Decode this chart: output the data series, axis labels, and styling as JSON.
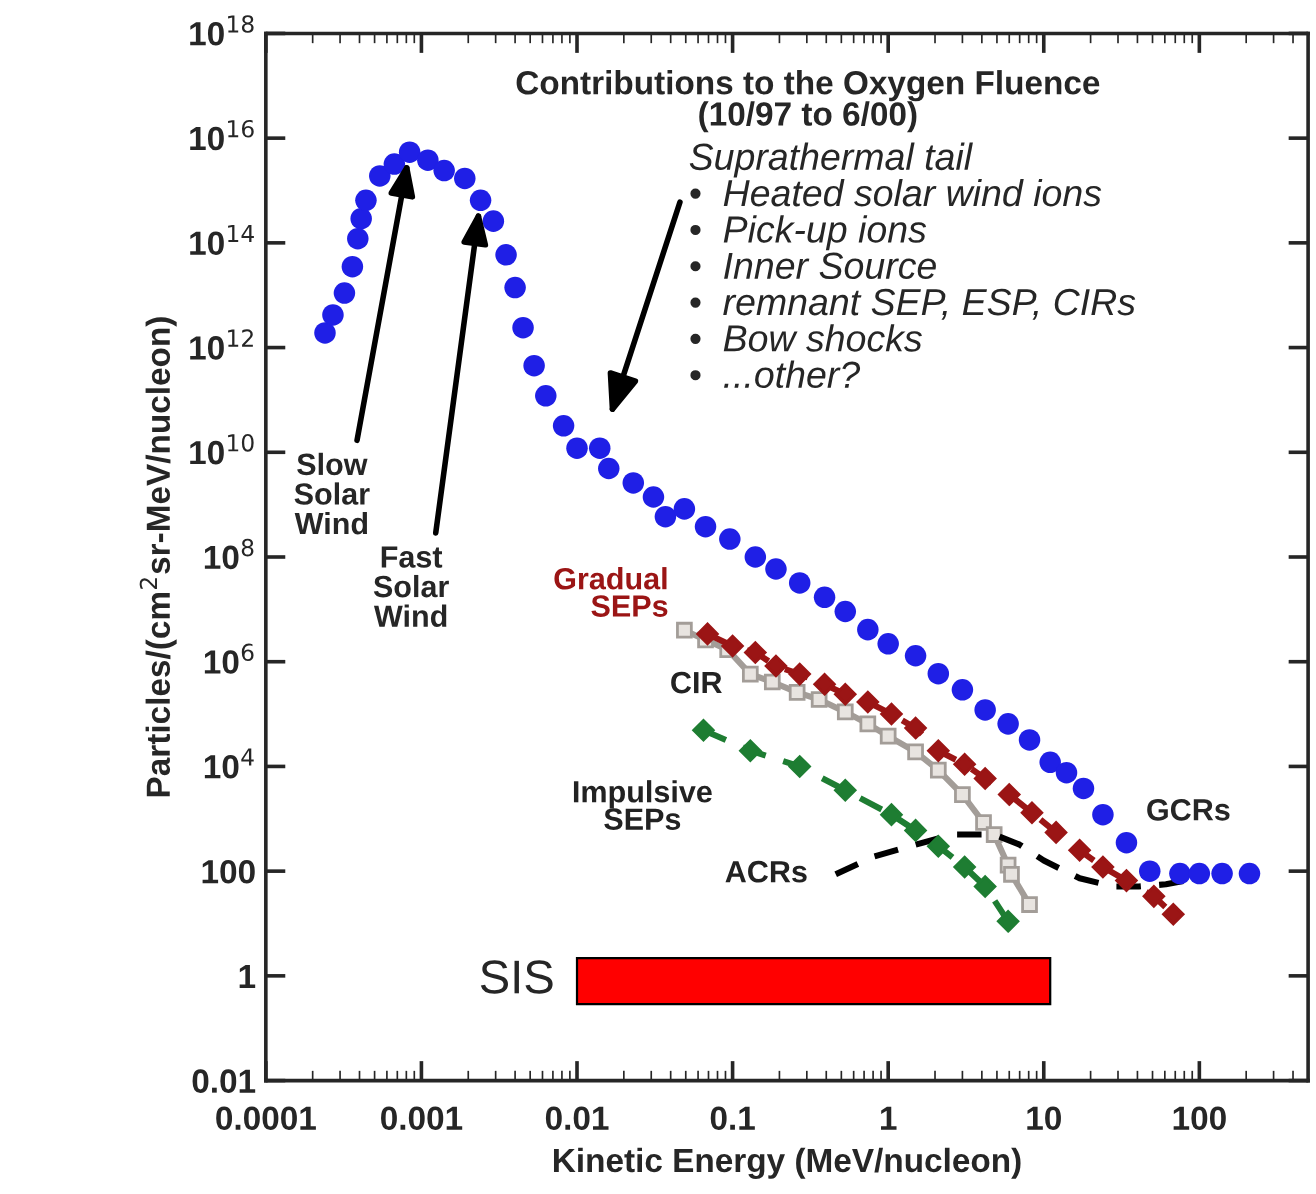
{
  "chart_data": {
    "type": "line",
    "title": "Contributions to the Oxygen Fluence\n(10/97 to 6/00)",
    "xlabel": "Kinetic Energy (MeV/nucleon)",
    "ylabel": "Particles/(cm$^{2}$sr-MeV/nucleon)",
    "log": "xy",
    "xlim": [
      0.0001,
      500
    ],
    "xticks": [
      0.0001,
      0.001,
      0.01,
      0.1,
      1,
      10,
      100
    ],
    "ylim": [
      0.01,
      1e+18
    ],
    "yticks": [
      0.01,
      1,
      100,
      {
        "value": 10000.0,
        "label": "10$^{4}$"
      },
      {
        "value": 1000000.0,
        "label": "10$^{6}$"
      },
      {
        "value": 100000000.0,
        "label": "10$^{8}$"
      },
      {
        "value": 10000000000.0,
        "label": "10$^{10}$"
      },
      {
        "value": 1000000000000.0,
        "label": "10$^{12}$"
      },
      {
        "value": 100000000000000.0,
        "label": "10$^{14}$"
      },
      {
        "value": 1e+16,
        "label": "10$^{16}$"
      },
      {
        "value": 1e+18,
        "label": "10$^{18}$"
      }
    ],
    "grid": false,
    "series": [
      {
        "type": "scatter",
        "color": "#1f1fe6",
        "marker": "circle",
        "x": [
          0.00024,
          0.00027,
          0.00032,
          0.00036,
          0.00039,
          0.00041,
          0.00044,
          0.00054,
          0.00067,
          0.00084,
          0.0011,
          0.0014,
          0.0019,
          0.0024,
          0.0029,
          0.0035,
          0.004,
          0.0045,
          0.0053,
          0.0063,
          0.0082,
          0.01,
          0.014,
          0.016,
          0.023,
          0.031,
          0.037,
          0.049,
          0.067,
          0.096,
          0.14,
          0.19,
          0.27,
          0.39,
          0.53,
          0.74,
          1.0,
          1.5,
          2.1,
          3.0,
          4.2,
          5.9,
          8.1,
          11,
          14,
          18,
          24,
          34,
          48,
          75,
          100,
          140,
          210
        ],
        "values": [
          1900000000000.0,
          4200000000000.0,
          11000000000000.0,
          35000000000000.0,
          120000000000000.0,
          290000000000000.0,
          650000000000000.0,
          1900000000000000.0,
          3200000000000000.0,
          5400000000000000.0,
          3800000000000000.0,
          2400000000000000.0,
          1700000000000000.0,
          650000000000000.0,
          260000000000000.0,
          59000000000000.0,
          14000000000000.0,
          2400000000000.0,
          450000000000.0,
          120000000000.0,
          32000000000.0,
          12000000000.0,
          12000000000.0,
          4900000000.0,
          2600000000.0,
          1400000000.0,
          590000000.0,
          830000000.0,
          380000000.0,
          220000000.0,
          100000000.0,
          59000000.0,
          32000000.0,
          17000000.0,
          9100000.0,
          4100000.0,
          2200000.0,
          1300000.0,
          590000.0,
          290000.0,
          120000.0,
          65000.0,
          32000.0,
          12000.0,
          7600,
          3800,
          1200,
          350,
          100,
          90,
          90,
          90,
          90
        ]
      },
      {
        "name": "Gradual\nSEPs",
        "color": "#9b1515",
        "marker": "diamond",
        "line_style": "dashed",
        "x": [
          0.069,
          0.1,
          0.14,
          0.19,
          0.27,
          0.39,
          0.53,
          0.74,
          1.05,
          1.5,
          2.1,
          3.1,
          4.2,
          6.0,
          8.4,
          12,
          17,
          24,
          34,
          51,
          68
        ],
        "values": [
          3400000.0,
          2000000.0,
          1500000.0,
          830000.0,
          580000.0,
          370000.0,
          240000.0,
          170000.0,
          100000.0,
          54000.0,
          20000.0,
          11000.0,
          5900,
          2900,
          1300,
          550,
          250,
          120,
          66,
          33,
          15
        ]
      },
      {
        "name": "CIR",
        "color": "#a39d98",
        "marker": "square",
        "line_style": "solid",
        "x": [
          0.049,
          0.067,
          0.093,
          0.13,
          0.18,
          0.26,
          0.36,
          0.53,
          0.74,
          1.0,
          1.5,
          2.1,
          3.0,
          4.1,
          4.8,
          5.9,
          6.2,
          8.1
        ],
        "values": [
          4000000.0,
          2600000.0,
          1700000.0,
          580000.0,
          410000.0,
          260000.0,
          190000.0,
          110000.0,
          65000.0,
          38000.0,
          19000.0,
          8500,
          2900,
          850,
          500,
          130,
          87,
          23
        ]
      },
      {
        "name": "Impulsive\nSEPs",
        "color": "#1e7d32",
        "marker": "diamond",
        "line_style": "dashed",
        "x": [
          0.065,
          0.13,
          0.27,
          0.53,
          1.05,
          1.5,
          2.1,
          3.1,
          4.2,
          5.9
        ],
        "values": [
          49000.0,
          20000.0,
          10000.0,
          3500,
          1200,
          600,
          300,
          120,
          51,
          11
        ]
      },
      {
        "name": "ACRs",
        "color": "#000000",
        "marker": "none",
        "line_style": "dashed",
        "x": [
          0.46,
          0.81,
          1.5,
          2.6,
          4.8,
          7.0,
          10,
          17,
          28,
          41,
          61,
          82
        ],
        "values": [
          87,
          190,
          320,
          500,
          500,
          320,
          160,
          73,
          51,
          51,
          56,
          66
        ]
      }
    ],
    "bands": [
      {
        "axis": "x",
        "from": 0.01,
        "to": 11,
        "label": "SIS",
        "color": "#ff0000"
      }
    ],
    "annotations": [
      {
        "text": "Slow\nSolar\nWind",
        "x": 0.00084,
        "y": 5400000000000000.0
      },
      {
        "text": "Fast\nSolar\nWind",
        "x": 0.0024,
        "y": 650000000000000.0
      },
      {
        "text": "Suprathermal tail\n•  Heated solar wind ions\n•  Pick-up ions\n•  Inner Source\n•  remnant SEP, ESP, CIRs\n•  Bow shocks\n•  ...other?",
        "x": 0.014,
        "y": 12000000000.0
      },
      {
        "text": "GCRs",
        "x": 210,
        "y": 90
      }
    ]
  }
}
